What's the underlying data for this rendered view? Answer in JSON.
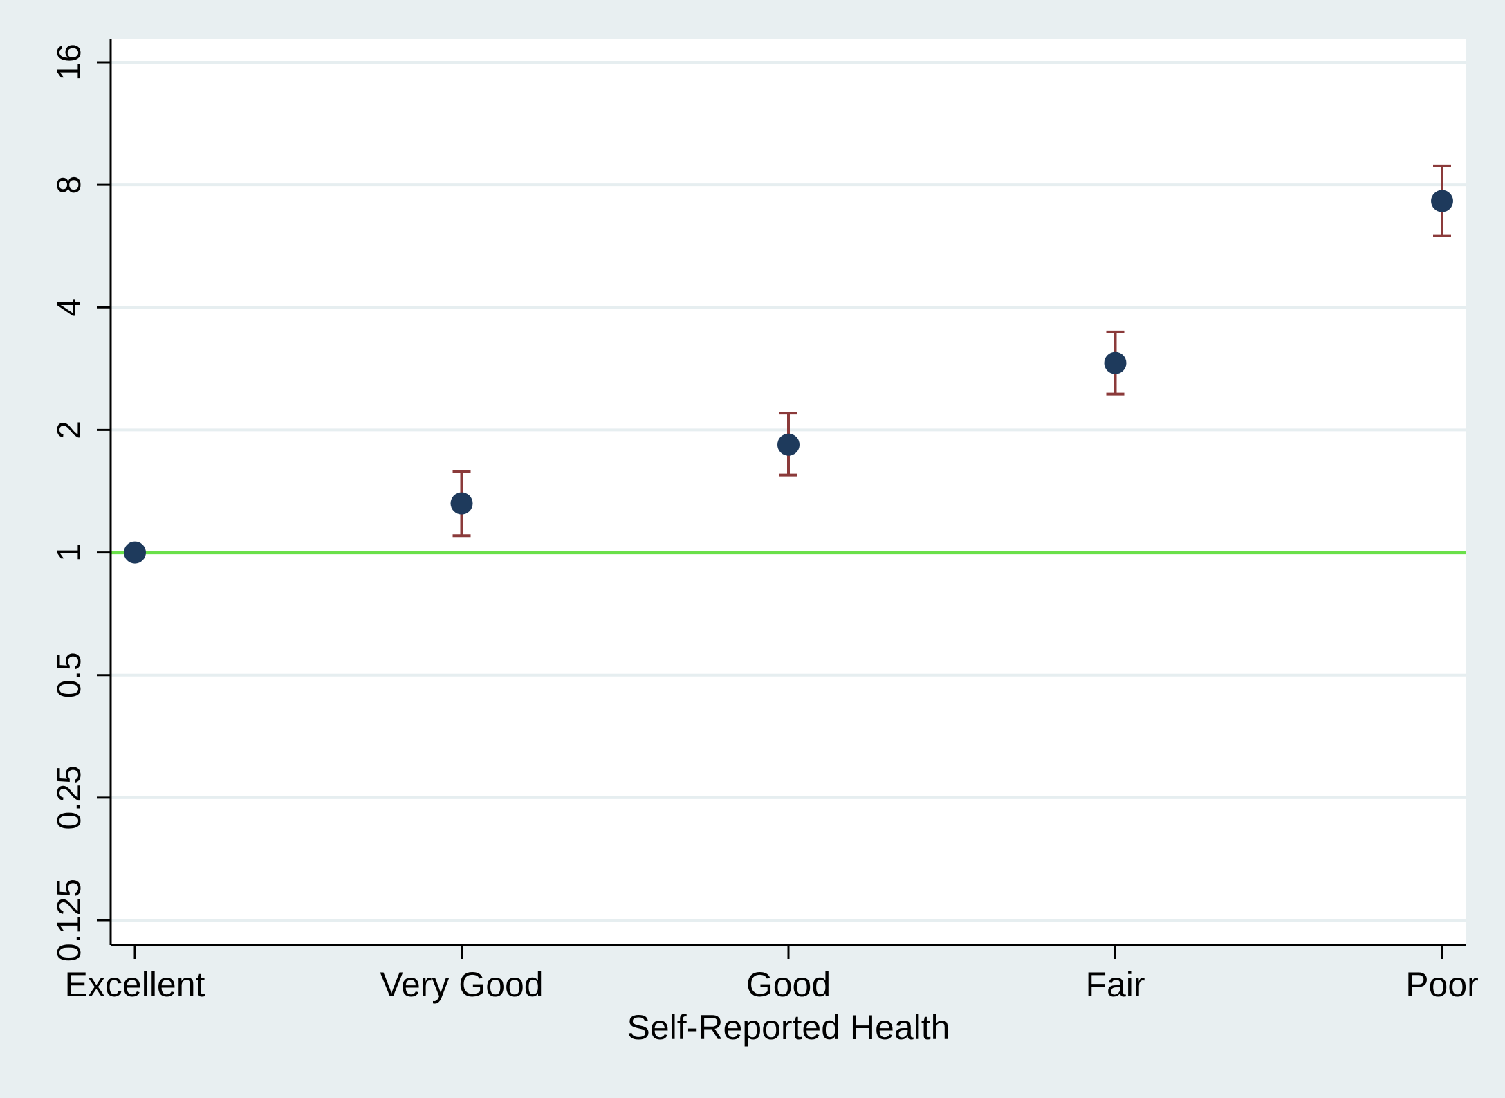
{
  "colors": {
    "outer_background": "#e8eff1",
    "plot_background": "#ffffff",
    "gridline": "#e6eef0",
    "reference_line": "#6ae04a",
    "marker": "#1e3a5c",
    "error_bar": "#8b3a3a",
    "axis": "#000000"
  },
  "chart_data": {
    "type": "scatter",
    "title": "",
    "xlabel": "Self-Reported Health",
    "ylabel": "",
    "y_scale": "log2",
    "ylim": [
      0.125,
      16
    ],
    "yticks": [
      0.125,
      0.25,
      0.5,
      1,
      2,
      4,
      8,
      16
    ],
    "ytick_labels": [
      "0.125",
      "0.25",
      "0.5",
      "1",
      "2",
      "4",
      "8",
      "16"
    ],
    "categories": [
      "Excellent",
      "Very Good",
      "Good",
      "Fair",
      "Poor"
    ],
    "values": [
      1.0,
      1.32,
      1.84,
      2.92,
      7.3
    ],
    "ci_lower": [
      null,
      1.1,
      1.55,
      2.45,
      6.0
    ],
    "ci_upper": [
      null,
      1.58,
      2.2,
      3.48,
      8.9
    ],
    "reference_line": 1,
    "grid": true,
    "legend": "none"
  }
}
